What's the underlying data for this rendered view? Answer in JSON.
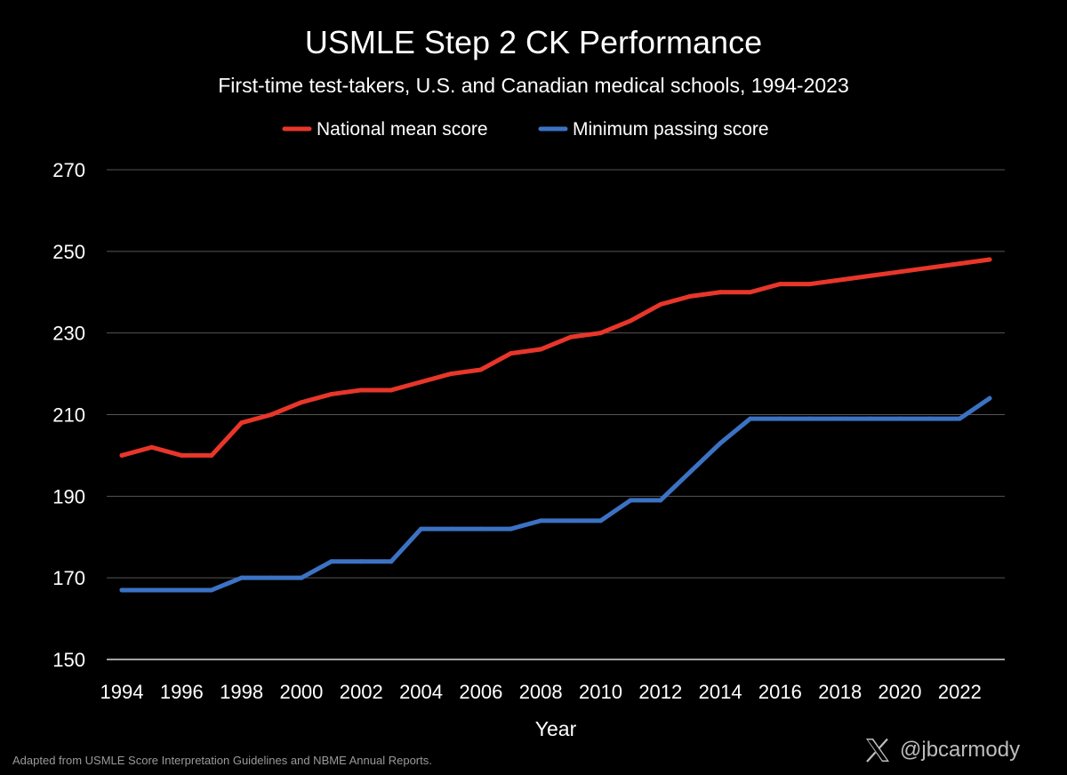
{
  "chart_data": {
    "type": "line",
    "title": "USMLE Step 2 CK Performance",
    "subtitle": "First-time test-takers, U.S. and Canadian medical schools, 1994-2023",
    "xlabel": "Year",
    "ylabel": "",
    "ylim": [
      150,
      270
    ],
    "yticks": [
      150,
      170,
      190,
      210,
      230,
      250,
      270
    ],
    "xlim": [
      1994,
      2023
    ],
    "xticks": [
      1994,
      1996,
      1998,
      2000,
      2002,
      2004,
      2006,
      2008,
      2010,
      2012,
      2014,
      2016,
      2018,
      2020,
      2022
    ],
    "grid": true,
    "legend_position": "top-center",
    "x": [
      1994,
      1995,
      1996,
      1997,
      1998,
      1999,
      2000,
      2001,
      2002,
      2003,
      2004,
      2005,
      2006,
      2007,
      2008,
      2009,
      2010,
      2011,
      2012,
      2013,
      2014,
      2015,
      2016,
      2017,
      2018,
      2019,
      2020,
      2021,
      2022,
      2023
    ],
    "series": [
      {
        "name": "National mean score",
        "color": "#e8362a",
        "values": [
          200,
          202,
          200,
          200,
          208,
          210,
          213,
          215,
          216,
          216,
          218,
          220,
          221,
          225,
          226,
          229,
          230,
          233,
          237,
          239,
          240,
          240,
          242,
          242,
          243,
          244,
          245,
          246,
          247,
          248
        ]
      },
      {
        "name": "Minimum passing score",
        "color": "#3c72c4",
        "values": [
          167,
          167,
          167,
          167,
          170,
          170,
          170,
          174,
          174,
          174,
          182,
          182,
          182,
          182,
          184,
          184,
          184,
          189,
          189,
          196,
          203,
          209,
          209,
          209,
          209,
          209,
          209,
          209,
          209,
          214
        ]
      }
    ]
  },
  "footer": {
    "source": "Adapted from USMLE Score Interpretation Guidelines and NBME Annual Reports.",
    "handle": "@jbcarmody",
    "logo_icon": "x-logo-icon"
  }
}
